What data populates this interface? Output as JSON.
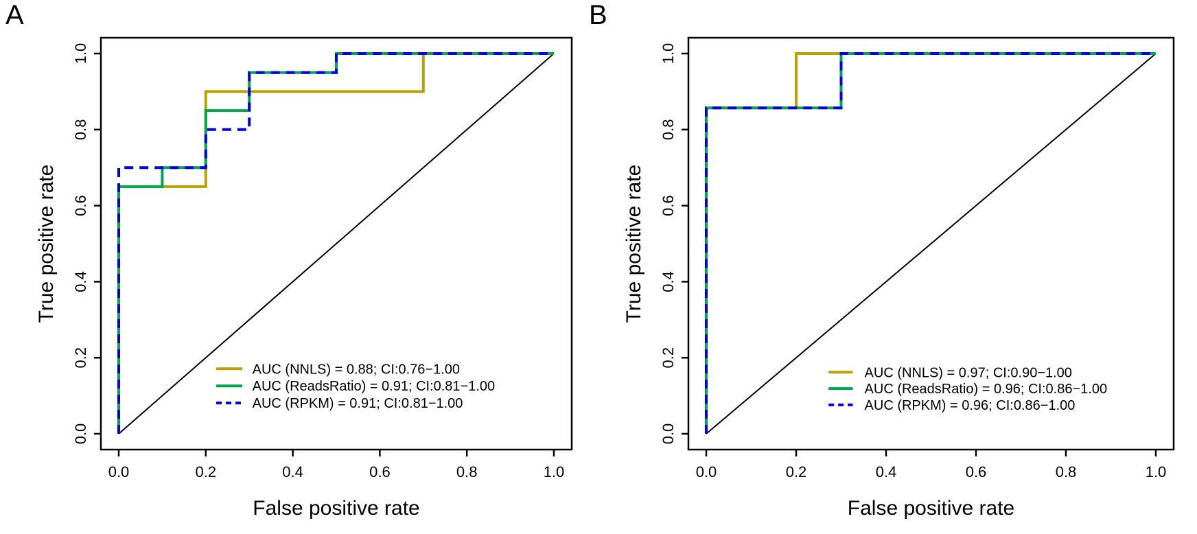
{
  "figure": {
    "background": "#ffffff",
    "text_color": "#000000"
  },
  "chart_data": [
    {
      "type": "line",
      "subtype": "roc-step-curves",
      "panel_label": "A",
      "xlabel": "False positive rate",
      "ylabel": "True positive rate",
      "xlim": [
        0,
        1
      ],
      "ylim": [
        0,
        1
      ],
      "x_ticks": [
        "0.0",
        "0.2",
        "0.4",
        "0.6",
        "0.8",
        "1.0"
      ],
      "y_ticks": [
        "0.0",
        "0.2",
        "0.4",
        "0.6",
        "0.8",
        "1.0"
      ],
      "grid": false,
      "legend_position": "inside-lower-right",
      "diagonal_reference_line": {
        "from": [
          0,
          0
        ],
        "to": [
          1,
          1
        ],
        "color": "#000000"
      },
      "series": [
        {
          "name": "NNLS",
          "color": "#b8a200",
          "linestyle": "solid",
          "auc": "0.88",
          "ci": "0.76−1.00",
          "legend_label": "AUC (NNLS) = 0.88; CI:0.76−1.00",
          "points": [
            [
              0,
              0
            ],
            [
              0,
              0.65
            ],
            [
              0.2,
              0.65
            ],
            [
              0.2,
              0.9
            ],
            [
              0.7,
              0.9
            ],
            [
              0.7,
              1.0
            ],
            [
              1,
              1
            ]
          ]
        },
        {
          "name": "ReadsRatio",
          "color": "#00a54f",
          "linestyle": "solid",
          "auc": "0.91",
          "ci": "0.81−1.00",
          "legend_label": "AUC (ReadsRatio) = 0.91; CI:0.81−1.00",
          "points": [
            [
              0,
              0
            ],
            [
              0,
              0.65
            ],
            [
              0.1,
              0.65
            ],
            [
              0.1,
              0.7
            ],
            [
              0.2,
              0.7
            ],
            [
              0.2,
              0.85
            ],
            [
              0.3,
              0.85
            ],
            [
              0.3,
              0.95
            ],
            [
              0.5,
              0.95
            ],
            [
              0.5,
              1.0
            ],
            [
              1,
              1
            ]
          ]
        },
        {
          "name": "RPKM",
          "color": "#0000e0",
          "linestyle": "dashed",
          "auc": "0.91",
          "ci": "0.81−1.00",
          "legend_label": "AUC (RPKM) = 0.91; CI:0.81−1.00",
          "points": [
            [
              0,
              0
            ],
            [
              0,
              0.7
            ],
            [
              0.2,
              0.7
            ],
            [
              0.2,
              0.8
            ],
            [
              0.3,
              0.8
            ],
            [
              0.3,
              0.95
            ],
            [
              0.5,
              0.95
            ],
            [
              0.5,
              1.0
            ],
            [
              1,
              1
            ]
          ]
        }
      ]
    },
    {
      "type": "line",
      "subtype": "roc-step-curves",
      "panel_label": "B",
      "xlabel": "False positive rate",
      "ylabel": "True positive rate",
      "xlim": [
        0,
        1
      ],
      "ylim": [
        0,
        1
      ],
      "x_ticks": [
        "0.0",
        "0.2",
        "0.4",
        "0.6",
        "0.8",
        "1.0"
      ],
      "y_ticks": [
        "0.0",
        "0.2",
        "0.4",
        "0.6",
        "0.8",
        "1.0"
      ],
      "grid": false,
      "legend_position": "inside-lower-right",
      "diagonal_reference_line": {
        "from": [
          0,
          0
        ],
        "to": [
          1,
          1
        ],
        "color": "#000000"
      },
      "series": [
        {
          "name": "NNLS",
          "color": "#b8a200",
          "linestyle": "solid",
          "auc": "0.97",
          "ci": "0.90−1.00",
          "legend_label": "AUC (NNLS) = 0.97; CI:0.90−1.00",
          "points": [
            [
              0,
              0
            ],
            [
              0,
              0.857
            ],
            [
              0.2,
              0.857
            ],
            [
              0.2,
              1.0
            ],
            [
              1,
              1
            ]
          ]
        },
        {
          "name": "ReadsRatio",
          "color": "#00a54f",
          "linestyle": "solid",
          "auc": "0.96",
          "ci": "0.86−1.00",
          "legend_label": "AUC (ReadsRatio) = 0.96; CI:0.86−1.00",
          "points": [
            [
              0,
              0
            ],
            [
              0,
              0.857
            ],
            [
              0.3,
              0.857
            ],
            [
              0.3,
              1.0
            ],
            [
              1,
              1
            ]
          ]
        },
        {
          "name": "RPKM",
          "color": "#0000e0",
          "linestyle": "dashed",
          "auc": "0.96",
          "ci": "0.86−1.00",
          "legend_label": "AUC (RPKM) = 0.96; CI:0.86−1.00",
          "points": [
            [
              0,
              0
            ],
            [
              0,
              0.857
            ],
            [
              0.3,
              0.857
            ],
            [
              0.3,
              1.0
            ],
            [
              1,
              1
            ]
          ]
        }
      ]
    }
  ]
}
